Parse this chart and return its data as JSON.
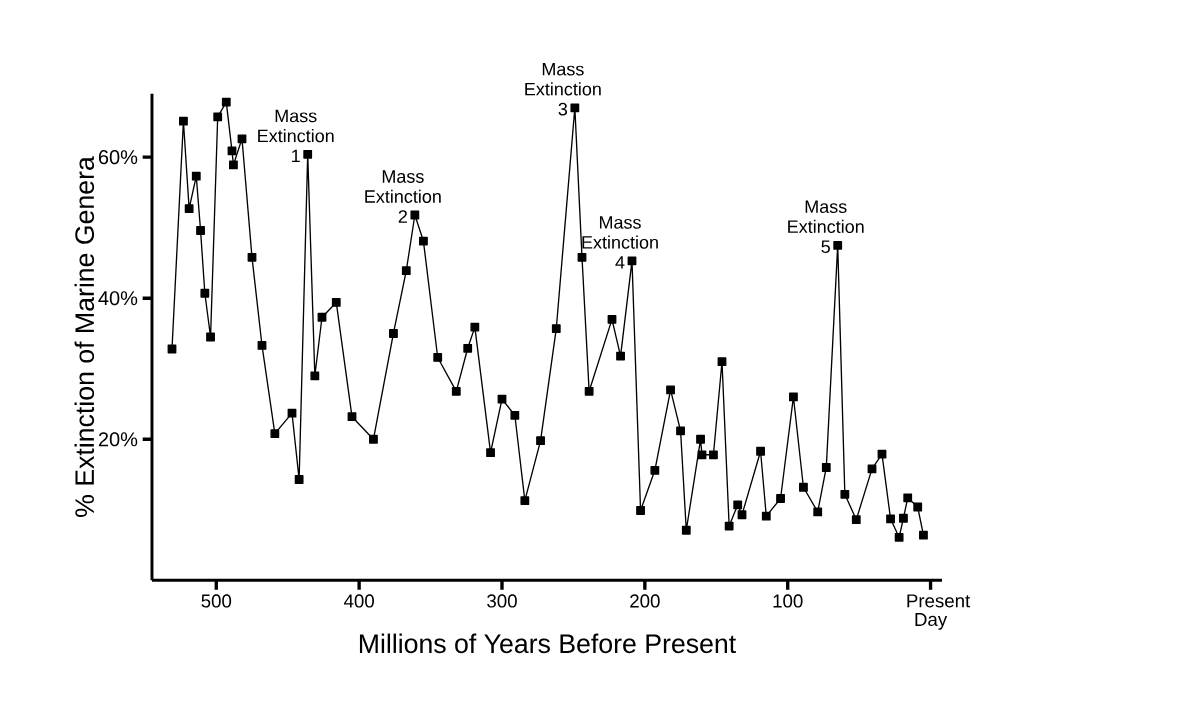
{
  "chart_data": {
    "type": "line",
    "xlabel": "Millions of Years Before Present",
    "ylabel": "% Extinction of Marine Genera",
    "x": [
      531,
      523,
      519,
      514,
      511,
      508,
      504,
      499,
      493,
      489,
      488,
      482,
      475,
      468,
      459,
      447,
      442,
      436,
      431,
      426,
      416,
      405,
      390,
      376,
      367,
      361,
      355,
      345,
      332,
      324,
      319,
      308,
      300,
      291,
      284,
      273,
      262,
      249,
      244,
      239,
      223,
      217,
      209,
      203,
      193,
      182,
      175,
      171,
      161,
      160,
      152,
      146,
      141,
      135,
      132,
      119,
      115,
      105,
      96,
      89,
      79,
      73,
      65,
      60,
      52,
      41,
      34,
      28,
      22,
      19,
      16,
      9,
      5
    ],
    "values": [
      32.8,
      65.1,
      52.7,
      57.3,
      49.6,
      40.7,
      34.5,
      65.7,
      67.8,
      60.9,
      58.9,
      62.6,
      45.8,
      33.3,
      20.8,
      23.7,
      14.3,
      60.4,
      29.0,
      37.3,
      39.4,
      23.2,
      20.0,
      35.0,
      43.9,
      51.8,
      48.1,
      31.6,
      26.8,
      32.9,
      35.9,
      18.1,
      25.7,
      23.4,
      11.3,
      19.8,
      35.7,
      67.0,
      45.8,
      26.8,
      37.0,
      31.8,
      45.3,
      9.9,
      15.6,
      27.0,
      21.2,
      7.1,
      20.0,
      17.8,
      17.8,
      31.0,
      7.7,
      10.7,
      9.3,
      18.3,
      9.1,
      11.6,
      26.0,
      13.2,
      9.7,
      16.0,
      47.5,
      12.2,
      8.6,
      15.8,
      17.9,
      8.7,
      6.1,
      8.8,
      11.7,
      10.4,
      6.4
    ],
    "color": "#000000",
    "marker": "square",
    "xlim": [
      545,
      -8
    ],
    "ylim": [
      0,
      69
    ],
    "xticks": [
      500,
      400,
      300,
      200,
      100,
      {
        "value": 0,
        "label": "Present Day"
      }
    ],
    "yticks": [
      {
        "value": 20,
        "label": "20%"
      },
      {
        "value": 40,
        "label": "40%"
      },
      {
        "value": 60,
        "label": "60%"
      }
    ],
    "annotations": [
      {
        "text": "Mass Extinction 1",
        "x": 436,
        "y": 60.4
      },
      {
        "text": "Mass Extinction 2",
        "x": 361,
        "y": 51.8
      },
      {
        "text": "Mass Extinction 3",
        "x": 249,
        "y": 67.0
      },
      {
        "text": "Mass Extinction 4",
        "x": 209,
        "y": 45.3
      },
      {
        "text": "Mass Extinction 5",
        "x": 65,
        "y": 47.5
      }
    ]
  }
}
